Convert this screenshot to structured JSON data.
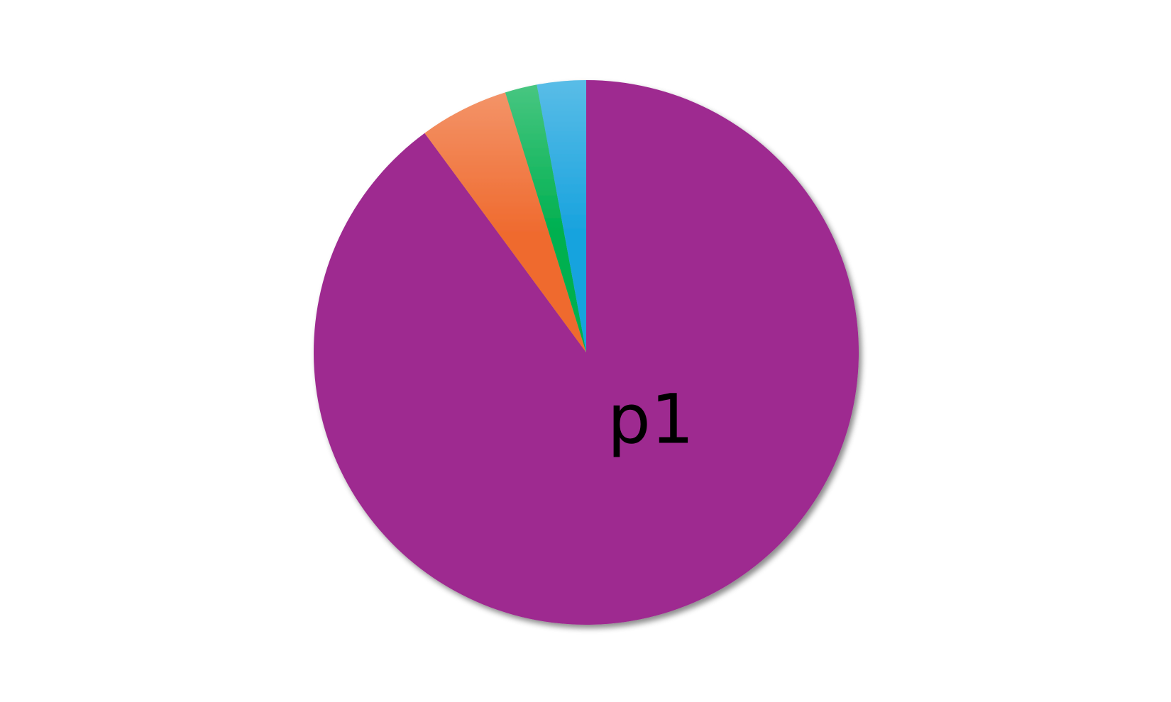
{
  "chart_data": {
    "type": "pie",
    "title": "",
    "start_angle_deg": 0,
    "direction": "clockwise",
    "slices": [
      {
        "label": "p1",
        "value": 89.9,
        "color": "#9e2a90",
        "show_label": true
      },
      {
        "label": "",
        "value": 5.3,
        "color": "#ef6a2e",
        "show_label": false
      },
      {
        "label": "",
        "value": 1.9,
        "color": "#00b050",
        "show_label": false
      },
      {
        "label": "",
        "value": 2.9,
        "color": "#19a3de",
        "show_label": false
      }
    ],
    "legend": "none"
  }
}
